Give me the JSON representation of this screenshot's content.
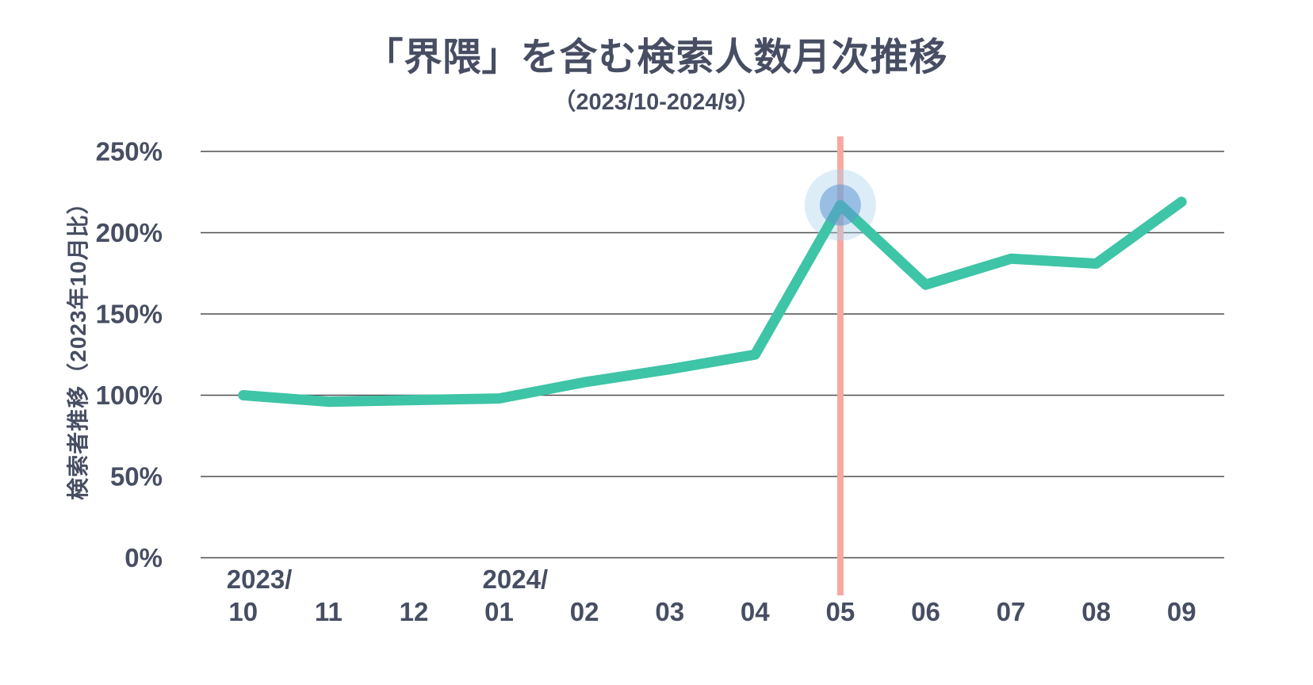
{
  "chart_data": {
    "type": "line",
    "title": "「界隈」を含む検索人数月次推移",
    "subtitle": "（2023/10-2024/9）",
    "ylabel": "検索者推移（2023年10月比）",
    "categories": [
      "2023/10",
      "11",
      "12",
      "2024/01",
      "02",
      "03",
      "04",
      "05",
      "06",
      "07",
      "08",
      "09"
    ],
    "values": [
      100,
      96,
      97,
      98,
      108,
      116,
      125,
      217,
      168,
      184,
      181,
      219
    ],
    "unit": "%",
    "ylim": [
      0,
      250
    ],
    "ytick_step": 50,
    "yticks": [
      "0%",
      "50%",
      "100%",
      "150%",
      "200%",
      "250%"
    ],
    "grid": "horizontal-only",
    "legend": "none",
    "highlight": {
      "category": "05",
      "index": 7,
      "value": 217,
      "marker": "blue-glow-dot"
    },
    "reference_line": {
      "orientation": "vertical",
      "category": "05",
      "index": 7
    },
    "colors": {
      "line": "#3ec4a6",
      "reference_line": "#f7a8a0",
      "marker_inner": "#5f98d3",
      "marker_glow": "#a9d3ec",
      "text": "#474e63",
      "grid": "#4f4f4f"
    }
  }
}
